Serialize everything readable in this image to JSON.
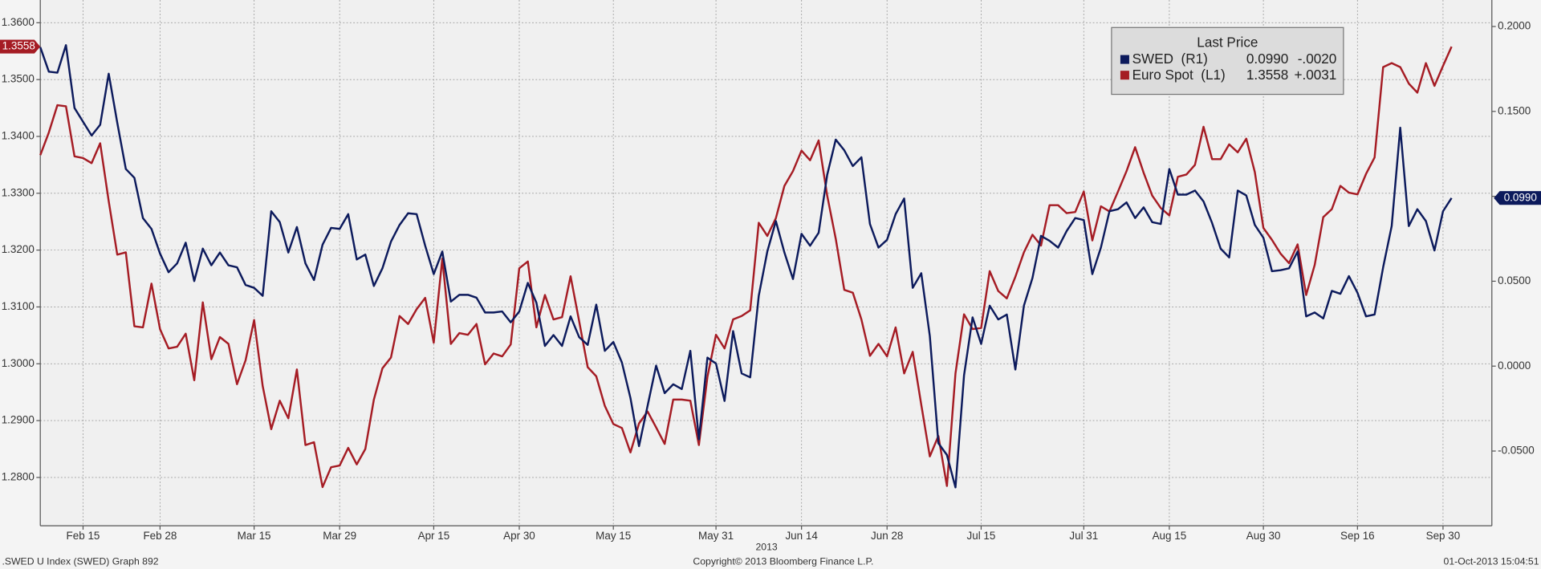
{
  "chart_data": {
    "type": "line",
    "legend_title": "Last Price",
    "x_label": "2013",
    "footer_left": ".SWED U Index (SWED) Graph 892",
    "footer_center": "Copyright© 2013 Bloomberg Finance L.P.",
    "footer_right": "01-Oct-2013 15:04:51",
    "grid": true,
    "legend": "top-right",
    "categories": [
      null,
      null,
      null,
      null,
      null,
      "Feb 15",
      null,
      null,
      null,
      null,
      null,
      null,
      null,
      null,
      "Feb 28",
      null,
      null,
      null,
      null,
      null,
      null,
      null,
      null,
      null,
      null,
      "Mar 15",
      null,
      null,
      null,
      null,
      null,
      null,
      null,
      null,
      null,
      "Mar 29",
      null,
      null,
      null,
      null,
      null,
      null,
      null,
      null,
      null,
      null,
      "Apr 15",
      null,
      null,
      null,
      null,
      null,
      null,
      null,
      null,
      null,
      "Apr 30",
      null,
      null,
      null,
      null,
      null,
      null,
      null,
      null,
      null,
      null,
      "May 15",
      null,
      null,
      null,
      null,
      null,
      null,
      null,
      null,
      null,
      null,
      null,
      "May 31",
      null,
      null,
      null,
      null,
      null,
      null,
      null,
      null,
      null,
      "Jun 14",
      null,
      null,
      null,
      null,
      null,
      null,
      null,
      null,
      null,
      "Jun 28",
      null,
      null,
      null,
      null,
      null,
      null,
      null,
      null,
      null,
      null,
      "Jul 15",
      null,
      null,
      null,
      null,
      null,
      null,
      null,
      null,
      null,
      null,
      null,
      "Jul 31",
      null,
      null,
      null,
      null,
      null,
      null,
      null,
      null,
      null,
      "Aug 15",
      null,
      null,
      null,
      null,
      null,
      null,
      null,
      null,
      null,
      null,
      "Aug 30",
      null,
      null,
      null,
      null,
      null,
      null,
      null,
      null,
      null,
      null,
      "Sep 16",
      null,
      null,
      null,
      null,
      null,
      null,
      null,
      null,
      null,
      "Sep 30",
      null
    ],
    "ylim": [
      1.2715,
      1.364
    ],
    "yticks": [
      {
        "value": 1.28,
        "label": "1.2800"
      },
      {
        "value": 1.29,
        "label": "1.2900"
      },
      {
        "value": 1.3,
        "label": "1.3000"
      },
      {
        "value": 1.31,
        "label": "1.3100"
      },
      {
        "value": 1.32,
        "label": "1.3200"
      },
      {
        "value": 1.33,
        "label": "1.3300"
      },
      {
        "value": 1.34,
        "label": "1.3400"
      },
      {
        "value": 1.35,
        "label": "1.3500"
      },
      {
        "value": 1.36,
        "label": "1.3600"
      }
    ],
    "y2lim": [
      -0.094,
      0.2156
    ],
    "y2ticks": [
      {
        "value": -0.05,
        "label": "-0.0500"
      },
      {
        "value": 0,
        "label": "0.0000"
      },
      {
        "value": 0.05,
        "label": "0.0500"
      },
      {
        "value": 0.1,
        "label": "0.1000"
      },
      {
        "value": 0.15,
        "label": "0.1500"
      },
      {
        "value": 0.2,
        "label": "0.2000"
      }
    ],
    "series": [
      {
        "name": "SWED  (R1)",
        "color": "#0c1a5c",
        "axis": "y2",
        "last_label": "0.0990",
        "change_label": "-.0020",
        "values": [
          0.1878,
          0.1734,
          0.1728,
          0.189,
          0.152,
          0.1439,
          0.1358,
          0.1421,
          0.1722,
          0.1433,
          0.1161,
          0.1109,
          0.0872,
          0.0808,
          0.0663,
          0.0553,
          0.0605,
          0.0727,
          0.0501,
          0.0692,
          0.0594,
          0.0669,
          0.0594,
          0.0582,
          0.0478,
          0.0461,
          0.0414,
          0.0912,
          0.0848,
          0.0669,
          0.0819,
          0.0605,
          0.0507,
          0.0715,
          0.0814,
          0.0808,
          0.0895,
          0.0628,
          0.0657,
          0.0472,
          0.0576,
          0.0733,
          0.0831,
          0.09,
          0.0895,
          0.0709,
          0.0542,
          0.0675,
          0.038,
          0.042,
          0.042,
          0.0403,
          0.0316,
          0.0316,
          0.0322,
          0.0258,
          0.0322,
          0.049,
          0.0374,
          0.0119,
          0.0183,
          0.0119,
          0.0293,
          0.0171,
          0.0125,
          0.0362,
          0.009,
          0.0142,
          0.0021,
          -0.0188,
          -0.0471,
          -0.0234,
          0.0003,
          -0.0159,
          -0.0107,
          -0.0135,
          0.009,
          -0.0431,
          0.005,
          0.0015,
          -0.0205,
          0.0206,
          -0.0043,
          -0.0066,
          0.0414,
          0.0675,
          0.0854,
          0.0669,
          0.0513,
          0.0779,
          0.0709,
          0.0785,
          0.1126,
          0.1334,
          0.1271,
          0.1178,
          0.123,
          0.0837,
          0.0698,
          0.0744,
          0.0895,
          0.0987,
          0.0461,
          0.0547,
          0.0177,
          -0.0454,
          -0.0523,
          -0.0714,
          -0.0054,
          0.0287,
          0.0131,
          0.0356,
          0.0275,
          0.0304,
          -0.002,
          0.0356,
          0.0519,
          0.0767,
          0.0738,
          0.0698,
          0.0796,
          0.0872,
          0.086,
          0.0542,
          0.0698,
          0.0912,
          0.0924,
          0.0964,
          0.0872,
          0.0935,
          0.0848,
          0.0837,
          0.1161,
          0.101,
          0.101,
          0.1034,
          0.097,
          0.0843,
          0.0692,
          0.064,
          0.1034,
          0.1005,
          0.0831,
          0.0756,
          0.0559,
          0.0565,
          0.0576,
          0.0675,
          0.0293,
          0.0316,
          0.0281,
          0.0443,
          0.0426,
          0.053,
          0.0432,
          0.0293,
          0.0304,
          0.0582,
          0.0825,
          0.1404,
          0.0825,
          0.0924,
          0.0854,
          0.0681,
          0.0912,
          0.099
        ]
      },
      {
        "name": "Euro Spot  (L1)",
        "color": "#a51c24",
        "axis": "y",
        "last_label": "1.3558",
        "change_label": "+.0031",
        "values": [
          1.3367,
          1.3407,
          1.3455,
          1.3453,
          1.3365,
          1.3362,
          1.3353,
          1.3388,
          1.3286,
          1.3192,
          1.3196,
          1.3066,
          1.3064,
          1.3141,
          1.3061,
          1.3027,
          1.303,
          1.3053,
          1.2971,
          1.3108,
          1.3008,
          1.3047,
          1.3035,
          1.2964,
          1.3006,
          1.3077,
          1.2961,
          1.2885,
          1.2935,
          1.2904,
          1.299,
          1.2857,
          1.2862,
          1.2783,
          1.2818,
          1.2821,
          1.2852,
          1.2823,
          1.285,
          1.2937,
          1.2992,
          1.3011,
          1.3084,
          1.307,
          1.3096,
          1.3116,
          1.3037,
          1.3185,
          1.3035,
          1.3054,
          1.3051,
          1.307,
          1.2999,
          1.3018,
          1.3013,
          1.3034,
          1.3168,
          1.318,
          1.3064,
          1.3121,
          1.3078,
          1.3082,
          1.3154,
          1.3075,
          1.2994,
          1.2978,
          1.2926,
          1.2894,
          1.2887,
          1.2844,
          1.2895,
          1.2916,
          1.2888,
          1.2859,
          1.2937,
          1.2937,
          1.2935,
          1.2857,
          1.2977,
          1.3051,
          1.3027,
          1.3078,
          1.3084,
          1.3094,
          1.3248,
          1.3225,
          1.3256,
          1.3313,
          1.3339,
          1.3375,
          1.3358,
          1.3393,
          1.3296,
          1.322,
          1.313,
          1.3125,
          1.3078,
          1.3014,
          1.3035,
          1.3013,
          1.3064,
          1.2983,
          1.3021,
          1.2928,
          1.2837,
          1.2873,
          1.2785,
          1.2983,
          1.3087,
          1.3061,
          1.3063,
          1.3163,
          1.3128,
          1.3115,
          1.3153,
          1.3196,
          1.3227,
          1.3208,
          1.3279,
          1.3279,
          1.3265,
          1.3267,
          1.3303,
          1.3217,
          1.3277,
          1.3268,
          1.3303,
          1.3339,
          1.3381,
          1.3336,
          1.3296,
          1.3274,
          1.3261,
          1.3329,
          1.3333,
          1.335,
          1.3417,
          1.336,
          1.336,
          1.3386,
          1.3372,
          1.3396,
          1.3337,
          1.3239,
          1.3218,
          1.3194,
          1.3177,
          1.321,
          1.3121,
          1.3174,
          1.3258,
          1.3272,
          1.3313,
          1.3301,
          1.3298,
          1.3334,
          1.3363,
          1.3522,
          1.3529,
          1.3522,
          1.3493,
          1.3477,
          1.3529,
          1.3489,
          1.3524,
          1.3558
        ]
      }
    ]
  }
}
